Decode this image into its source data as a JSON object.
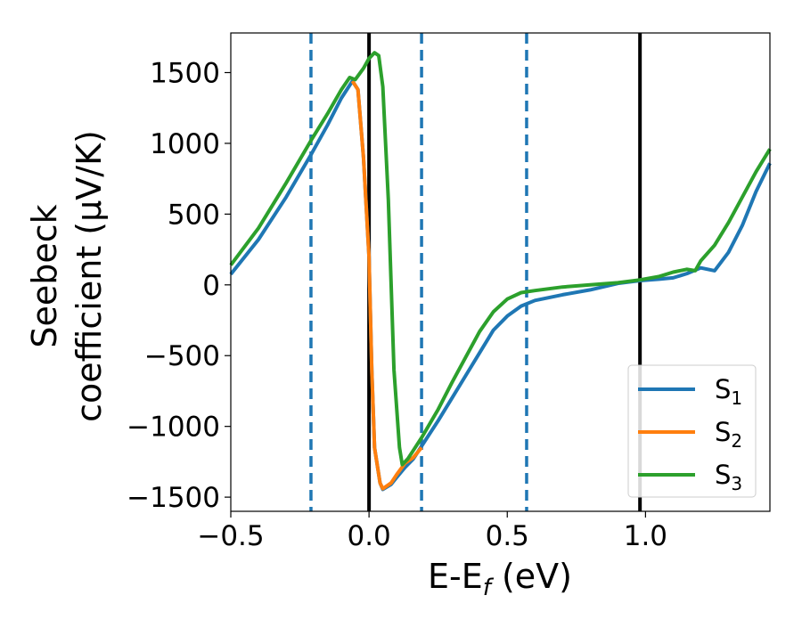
{
  "chart_data": {
    "type": "line",
    "xlabel": "E-E",
    "xlabel_sub": "f",
    "xlabel_unit": " (eV)",
    "ylabel_line1": "Seebeck",
    "ylabel_line2": "coefficient  (μV/K)",
    "xlim": [
      -0.5,
      1.45
    ],
    "ylim": [
      -1600,
      1780
    ],
    "x_ticks": [
      -0.5,
      0.0,
      0.5,
      1.0
    ],
    "x_tick_labels": [
      "−0.5",
      "0.0",
      "0.5",
      "1.0"
    ],
    "y_ticks": [
      -1500,
      -1000,
      -500,
      0,
      500,
      1000,
      1500
    ],
    "y_tick_labels": [
      "−1500",
      "−1000",
      "−500",
      "0",
      "500",
      "1000",
      "1500"
    ],
    "grid": false,
    "legend_position": "bottom-right",
    "vlines_solid": [
      0.0,
      0.98
    ],
    "vlines_dashed": [
      -0.21,
      0.19,
      0.57
    ],
    "colors": {
      "S1": "#1f77b4",
      "S2": "#ff7f0e",
      "S3": "#2ca02c",
      "solid_vline": "#000000",
      "dashed_vline": "#1f77b4"
    },
    "series": [
      {
        "name": "S",
        "sub": "1",
        "color_key": "S1",
        "points": [
          [
            -0.5,
            75
          ],
          [
            -0.4,
            320
          ],
          [
            -0.3,
            620
          ],
          [
            -0.21,
            920
          ],
          [
            -0.15,
            1130
          ],
          [
            -0.1,
            1320
          ],
          [
            -0.06,
            1440
          ],
          [
            -0.04,
            1380
          ],
          [
            -0.02,
            900
          ],
          [
            0.0,
            200
          ],
          [
            0.01,
            -600
          ],
          [
            0.02,
            -1150
          ],
          [
            0.04,
            -1400
          ],
          [
            0.05,
            -1445
          ],
          [
            0.08,
            -1410
          ],
          [
            0.1,
            -1360
          ],
          [
            0.13,
            -1290
          ],
          [
            0.16,
            -1230
          ],
          [
            0.19,
            -1140
          ],
          [
            0.25,
            -960
          ],
          [
            0.3,
            -800
          ],
          [
            0.35,
            -640
          ],
          [
            0.4,
            -480
          ],
          [
            0.45,
            -320
          ],
          [
            0.5,
            -220
          ],
          [
            0.55,
            -150
          ],
          [
            0.6,
            -110
          ],
          [
            0.7,
            -70
          ],
          [
            0.8,
            -35
          ],
          [
            0.9,
            10
          ],
          [
            0.98,
            30
          ],
          [
            1.05,
            40
          ],
          [
            1.1,
            50
          ],
          [
            1.15,
            80
          ],
          [
            1.2,
            120
          ],
          [
            1.25,
            100
          ],
          [
            1.3,
            230
          ],
          [
            1.35,
            420
          ],
          [
            1.4,
            660
          ],
          [
            1.45,
            860
          ]
        ]
      },
      {
        "name": "S",
        "sub": "2",
        "color_key": "S2",
        "points": [
          [
            -0.06,
            1440
          ],
          [
            -0.04,
            1380
          ],
          [
            -0.02,
            900
          ],
          [
            0.0,
            200
          ],
          [
            0.01,
            -600
          ],
          [
            0.02,
            -1150
          ],
          [
            0.04,
            -1400
          ],
          [
            0.05,
            -1440
          ],
          [
            0.08,
            -1400
          ],
          [
            0.1,
            -1340
          ],
          [
            0.13,
            -1260
          ],
          [
            0.16,
            -1220
          ],
          [
            0.19,
            -1150
          ]
        ]
      },
      {
        "name": "S",
        "sub": "3",
        "color_key": "S3",
        "points": [
          [
            -0.5,
            140
          ],
          [
            -0.4,
            400
          ],
          [
            -0.3,
            720
          ],
          [
            -0.21,
            1020
          ],
          [
            -0.15,
            1210
          ],
          [
            -0.1,
            1380
          ],
          [
            -0.07,
            1465
          ],
          [
            -0.05,
            1450
          ],
          [
            -0.02,
            1530
          ],
          [
            0.0,
            1600
          ],
          [
            0.02,
            1640
          ],
          [
            0.035,
            1620
          ],
          [
            0.05,
            1400
          ],
          [
            0.07,
            600
          ],
          [
            0.09,
            -600
          ],
          [
            0.11,
            -1150
          ],
          [
            0.12,
            -1270
          ],
          [
            0.14,
            -1230
          ],
          [
            0.16,
            -1170
          ],
          [
            0.19,
            -1080
          ],
          [
            0.25,
            -880
          ],
          [
            0.3,
            -690
          ],
          [
            0.35,
            -510
          ],
          [
            0.4,
            -330
          ],
          [
            0.45,
            -190
          ],
          [
            0.5,
            -100
          ],
          [
            0.55,
            -55
          ],
          [
            0.6,
            -40
          ],
          [
            0.7,
            -15
          ],
          [
            0.8,
            0
          ],
          [
            0.9,
            15
          ],
          [
            0.98,
            35
          ],
          [
            1.05,
            60
          ],
          [
            1.1,
            90
          ],
          [
            1.15,
            110
          ],
          [
            1.18,
            100
          ],
          [
            1.2,
            170
          ],
          [
            1.25,
            280
          ],
          [
            1.3,
            440
          ],
          [
            1.35,
            620
          ],
          [
            1.4,
            800
          ],
          [
            1.45,
            960
          ]
        ]
      }
    ]
  }
}
